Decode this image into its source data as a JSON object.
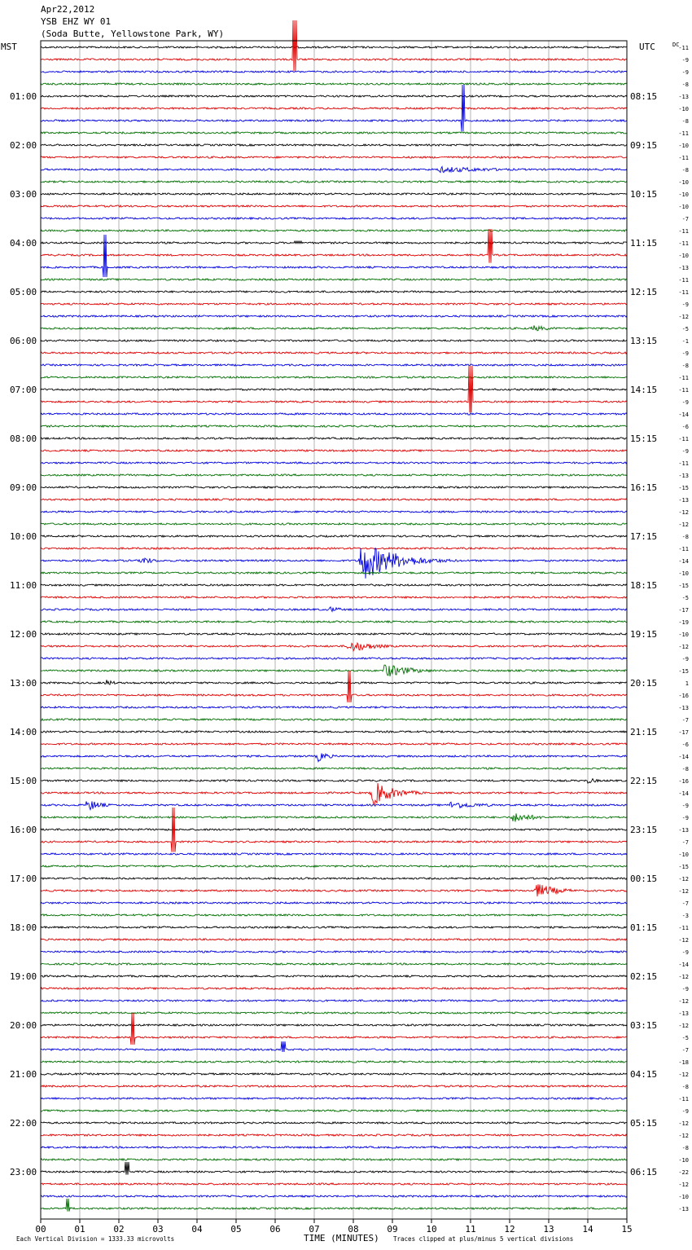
{
  "header": {
    "date": "Apr22,2012",
    "station": "YSB EHZ WY 01",
    "location": "(Soda Butte, Yellowstone Park, WY)"
  },
  "chart_data": {
    "type": "line",
    "left_axis_title": "MST",
    "right_axis_title": "UTC",
    "dc_label": "DC",
    "xlabel": "TIME (MINUTES)",
    "xlim": [
      0,
      15
    ],
    "x_tick_labels": [
      "00",
      "01",
      "02",
      "03",
      "04",
      "05",
      "06",
      "07",
      "08",
      "09",
      "10",
      "11",
      "12",
      "13",
      "14",
      "15"
    ],
    "footer_left": "Each Vertical Division = 1333.33 microvolts",
    "footer_right": "Traces clipped at plus/minus 5 vertical divisions",
    "trace_colors": [
      "#000000",
      "#e00000",
      "#0000e0",
      "#007000"
    ],
    "traces_per_hour": 4,
    "hour_labels_left": [
      "01:00",
      "02:00",
      "03:00",
      "04:00",
      "05:00",
      "06:00",
      "07:00",
      "08:00",
      "09:00",
      "10:00",
      "11:00",
      "12:00",
      "13:00",
      "14:00",
      "15:00",
      "16:00",
      "17:00",
      "18:00",
      "19:00",
      "20:00",
      "21:00",
      "22:00",
      "23:00"
    ],
    "hour_labels_right": [
      "08:15",
      "09:15",
      "10:15",
      "11:15",
      "12:15",
      "13:15",
      "14:15",
      "15:15",
      "16:15",
      "17:15",
      "18:15",
      "19:15",
      "20:15",
      "21:15",
      "22:15",
      "23:15",
      "00:15",
      "01:15",
      "02:15",
      "03:15",
      "04:15",
      "05:15",
      "06:15"
    ],
    "dc_offsets": [
      "-11",
      "-9",
      "-9",
      "-8",
      "-13",
      "-10",
      "-8",
      "-11",
      "-10",
      "-11",
      "-8",
      "-10",
      "-10",
      "-10",
      "-7",
      "-11",
      "-11",
      "-10",
      "-13",
      "-11",
      "-11",
      "-9",
      "-12",
      "-5",
      "-1",
      "-9",
      "-8",
      "-11",
      "-11",
      "-9",
      "-14",
      "-6",
      "-11",
      "-9",
      "-11",
      "-13",
      "-15",
      "-13",
      "-12",
      "-12",
      "-8",
      "-11",
      "-14",
      "-10",
      "-15",
      "-5",
      "-17",
      "-19",
      "-10",
      "-12",
      "-9",
      "-15",
      "1",
      "-16",
      "-13",
      "-7",
      "-17",
      "-6",
      "-14",
      "-8",
      "-16",
      "-14",
      "-9",
      "-9",
      "-13",
      "-7",
      "-10",
      "-15",
      "-12",
      "-12",
      "-7",
      "-3",
      "-11",
      "-12",
      "-9",
      "-14",
      "-12",
      "-9",
      "-12",
      "-13",
      "-12",
      "-5",
      "-7",
      "-18",
      "-12",
      "-8",
      "-11",
      "-9",
      "-12",
      "-12",
      "-8",
      "-10",
      "-22",
      "-12",
      "-10",
      "-13"
    ],
    "events": [
      {
        "trace": 1,
        "minute": 6.5,
        "amp": 48,
        "dur": 0.05,
        "style": "spike"
      },
      {
        "trace": 6,
        "minute": 10.8,
        "amp": 44,
        "dur": 0.05,
        "style": "spike"
      },
      {
        "trace": 10,
        "minute": 10.2,
        "amp": 4,
        "dur": 4.8,
        "style": "burst"
      },
      {
        "trace": 16,
        "minute": 6.6,
        "amp": 2,
        "dur": 0.1,
        "style": "spike"
      },
      {
        "trace": 17,
        "minute": 11.5,
        "amp": 32,
        "dur": 0.05,
        "style": "spike"
      },
      {
        "trace": 18,
        "minute": 1.65,
        "amp": 40,
        "dur": 0.05,
        "style": "spike"
      },
      {
        "trace": 23,
        "minute": 12.6,
        "amp": 4,
        "dur": 1.5,
        "style": "burst"
      },
      {
        "trace": 29,
        "minute": 11.0,
        "amp": 44,
        "dur": 0.05,
        "style": "spike"
      },
      {
        "trace": 42,
        "minute": 2.6,
        "amp": 6,
        "dur": 0.8,
        "style": "burst"
      },
      {
        "trace": 42,
        "minute": 8.2,
        "amp": 26,
        "dur": 2.5,
        "style": "burst"
      },
      {
        "trace": 46,
        "minute": 7.4,
        "amp": 4,
        "dur": 1.0,
        "style": "burst"
      },
      {
        "trace": 49,
        "minute": 7.9,
        "amp": 8,
        "dur": 1.8,
        "style": "burst"
      },
      {
        "trace": 51,
        "minute": 8.8,
        "amp": 9,
        "dur": 2.0,
        "style": "burst"
      },
      {
        "trace": 52,
        "minute": 1.7,
        "amp": 5,
        "dur": 0.5,
        "style": "burst"
      },
      {
        "trace": 53,
        "minute": 7.9,
        "amp": 30,
        "dur": 0.05,
        "style": "spike"
      },
      {
        "trace": 58,
        "minute": 7.1,
        "amp": 7,
        "dur": 0.8,
        "style": "burst"
      },
      {
        "trace": 60,
        "minute": 14.0,
        "amp": 4,
        "dur": 0.8,
        "style": "burst"
      },
      {
        "trace": 61,
        "minute": 8.5,
        "amp": 16,
        "dur": 1.6,
        "style": "burst"
      },
      {
        "trace": 62,
        "minute": 1.2,
        "amp": 8,
        "dur": 1.0,
        "style": "burst"
      },
      {
        "trace": 62,
        "minute": 10.5,
        "amp": 5,
        "dur": 2.5,
        "style": "burst"
      },
      {
        "trace": 63,
        "minute": 12.1,
        "amp": 7,
        "dur": 1.5,
        "style": "burst"
      },
      {
        "trace": 65,
        "minute": 3.4,
        "amp": 42,
        "dur": 0.05,
        "style": "spike"
      },
      {
        "trace": 69,
        "minute": 12.7,
        "amp": 9,
        "dur": 1.6,
        "style": "burst"
      },
      {
        "trace": 81,
        "minute": 2.35,
        "amp": 30,
        "dur": 0.05,
        "style": "spike"
      },
      {
        "trace": 82,
        "minute": 6.2,
        "amp": 10,
        "dur": 0.05,
        "style": "spike"
      },
      {
        "trace": 92,
        "minute": 2.2,
        "amp": 12,
        "dur": 0.05,
        "style": "spike"
      },
      {
        "trace": 95,
        "minute": 0.7,
        "amp": 12,
        "dur": 0.05,
        "style": "spike"
      }
    ]
  }
}
